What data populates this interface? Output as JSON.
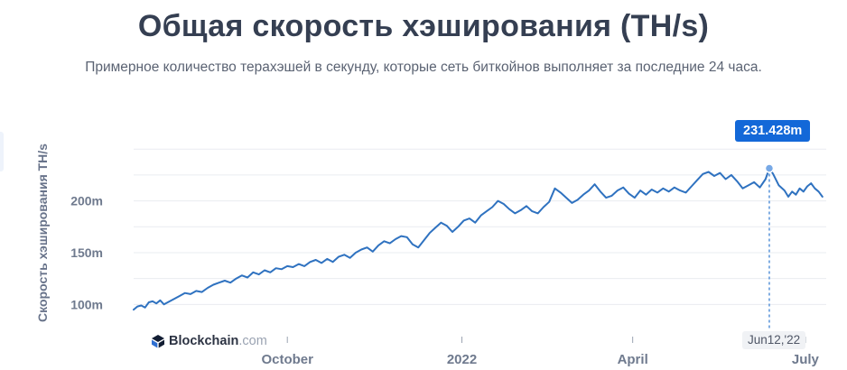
{
  "header": {
    "title": "Общая скорость хэширования (TH/s)",
    "subtitle": "Примерное количество терахэшей в секунду, которые сеть биткойнов выполняет за последние 24 часа."
  },
  "brand": {
    "name": "Blockchain",
    "suffix": ".com"
  },
  "tooltip": {
    "value": "231.428m",
    "date": "Jun12,'22"
  },
  "colors": {
    "line": "#2f72c0",
    "tooltip_bg": "#1368d8",
    "grid": "#e9ecf1",
    "text": "#353f52"
  },
  "chart_data": {
    "type": "line",
    "title": "Общая скорость хэширования (TH/s)",
    "ylabel": "Скорость хэширования TH/s",
    "ylim": [
      82,
      265
    ],
    "xlim": [
      "2021-07-12",
      "2022-07-12"
    ],
    "y_ticks": [
      {
        "value": 100,
        "label": "100m"
      },
      {
        "value": 150,
        "label": "150m"
      },
      {
        "value": 200,
        "label": "200m"
      }
    ],
    "x_ticks": [
      {
        "date": "2021-10-01",
        "label": "October"
      },
      {
        "date": "2022-01-01",
        "label": "2022"
      },
      {
        "date": "2022-04-01",
        "label": "April"
      },
      {
        "date": "2022-07-01",
        "label": "July"
      }
    ],
    "grid": true,
    "highlight": {
      "date": "2022-06-12",
      "value": 231.428
    },
    "series": [
      {
        "points": [
          [
            "2021-07-12",
            95
          ],
          [
            "2021-07-14",
            98
          ],
          [
            "2021-07-16",
            99
          ],
          [
            "2021-07-18",
            97
          ],
          [
            "2021-07-20",
            102
          ],
          [
            "2021-07-22",
            103
          ],
          [
            "2021-07-24",
            101
          ],
          [
            "2021-07-26",
            104
          ],
          [
            "2021-07-28",
            100
          ],
          [
            "2021-07-30",
            102
          ],
          [
            "2021-08-02",
            105
          ],
          [
            "2021-08-05",
            108
          ],
          [
            "2021-08-08",
            111
          ],
          [
            "2021-08-11",
            110
          ],
          [
            "2021-08-14",
            113
          ],
          [
            "2021-08-17",
            112
          ],
          [
            "2021-08-20",
            116
          ],
          [
            "2021-08-23",
            119
          ],
          [
            "2021-08-26",
            121
          ],
          [
            "2021-08-29",
            123
          ],
          [
            "2021-09-01",
            121
          ],
          [
            "2021-09-04",
            125
          ],
          [
            "2021-09-07",
            128
          ],
          [
            "2021-09-10",
            126
          ],
          [
            "2021-09-13",
            131
          ],
          [
            "2021-09-16",
            129
          ],
          [
            "2021-09-19",
            133
          ],
          [
            "2021-09-22",
            131
          ],
          [
            "2021-09-25",
            135
          ],
          [
            "2021-09-28",
            134
          ],
          [
            "2021-10-01",
            137
          ],
          [
            "2021-10-04",
            136
          ],
          [
            "2021-10-07",
            139
          ],
          [
            "2021-10-10",
            137
          ],
          [
            "2021-10-13",
            141
          ],
          [
            "2021-10-16",
            143
          ],
          [
            "2021-10-19",
            140
          ],
          [
            "2021-10-22",
            144
          ],
          [
            "2021-10-25",
            141
          ],
          [
            "2021-10-28",
            146
          ],
          [
            "2021-10-31",
            148
          ],
          [
            "2021-11-03",
            145
          ],
          [
            "2021-11-06",
            150
          ],
          [
            "2021-11-09",
            153
          ],
          [
            "2021-11-12",
            155
          ],
          [
            "2021-11-15",
            151
          ],
          [
            "2021-11-18",
            157
          ],
          [
            "2021-11-21",
            161
          ],
          [
            "2021-11-24",
            159
          ],
          [
            "2021-11-27",
            163
          ],
          [
            "2021-11-30",
            166
          ],
          [
            "2021-12-03",
            165
          ],
          [
            "2021-12-06",
            158
          ],
          [
            "2021-12-09",
            155
          ],
          [
            "2021-12-12",
            162
          ],
          [
            "2021-12-15",
            169
          ],
          [
            "2021-12-18",
            174
          ],
          [
            "2021-12-21",
            179
          ],
          [
            "2021-12-24",
            176
          ],
          [
            "2021-12-27",
            170
          ],
          [
            "2021-12-30",
            175
          ],
          [
            "2022-01-02",
            181
          ],
          [
            "2022-01-05",
            183
          ],
          [
            "2022-01-08",
            179
          ],
          [
            "2022-01-11",
            186
          ],
          [
            "2022-01-14",
            190
          ],
          [
            "2022-01-17",
            194
          ],
          [
            "2022-01-20",
            200
          ],
          [
            "2022-01-23",
            197
          ],
          [
            "2022-01-26",
            192
          ],
          [
            "2022-01-29",
            188
          ],
          [
            "2022-02-01",
            191
          ],
          [
            "2022-02-04",
            195
          ],
          [
            "2022-02-07",
            190
          ],
          [
            "2022-02-10",
            188
          ],
          [
            "2022-02-13",
            194
          ],
          [
            "2022-02-16",
            199
          ],
          [
            "2022-02-19",
            212
          ],
          [
            "2022-02-22",
            208
          ],
          [
            "2022-02-25",
            203
          ],
          [
            "2022-02-28",
            198
          ],
          [
            "2022-03-03",
            201
          ],
          [
            "2022-03-06",
            206
          ],
          [
            "2022-03-09",
            210
          ],
          [
            "2022-03-12",
            216
          ],
          [
            "2022-03-15",
            209
          ],
          [
            "2022-03-18",
            203
          ],
          [
            "2022-03-21",
            205
          ],
          [
            "2022-03-24",
            210
          ],
          [
            "2022-03-27",
            213
          ],
          [
            "2022-03-30",
            207
          ],
          [
            "2022-04-02",
            203
          ],
          [
            "2022-04-05",
            210
          ],
          [
            "2022-04-08",
            206
          ],
          [
            "2022-04-11",
            211
          ],
          [
            "2022-04-14",
            208
          ],
          [
            "2022-04-17",
            212
          ],
          [
            "2022-04-20",
            209
          ],
          [
            "2022-04-23",
            213
          ],
          [
            "2022-04-26",
            210
          ],
          [
            "2022-04-29",
            208
          ],
          [
            "2022-05-02",
            214
          ],
          [
            "2022-05-05",
            220
          ],
          [
            "2022-05-08",
            226
          ],
          [
            "2022-05-11",
            228
          ],
          [
            "2022-05-14",
            224
          ],
          [
            "2022-05-17",
            227
          ],
          [
            "2022-05-20",
            221
          ],
          [
            "2022-05-23",
            225
          ],
          [
            "2022-05-26",
            219
          ],
          [
            "2022-05-29",
            212
          ],
          [
            "2022-06-01",
            215
          ],
          [
            "2022-06-04",
            218
          ],
          [
            "2022-06-07",
            213
          ],
          [
            "2022-06-10",
            221
          ],
          [
            "2022-06-12",
            231.428
          ],
          [
            "2022-06-14",
            226
          ],
          [
            "2022-06-17",
            215
          ],
          [
            "2022-06-20",
            210
          ],
          [
            "2022-06-22",
            204
          ],
          [
            "2022-06-24",
            209
          ],
          [
            "2022-06-26",
            206
          ],
          [
            "2022-06-28",
            212
          ],
          [
            "2022-06-30",
            209
          ],
          [
            "2022-07-02",
            214
          ],
          [
            "2022-07-04",
            217
          ],
          [
            "2022-07-06",
            212
          ],
          [
            "2022-07-08",
            209
          ],
          [
            "2022-07-10",
            204
          ]
        ]
      }
    ]
  }
}
